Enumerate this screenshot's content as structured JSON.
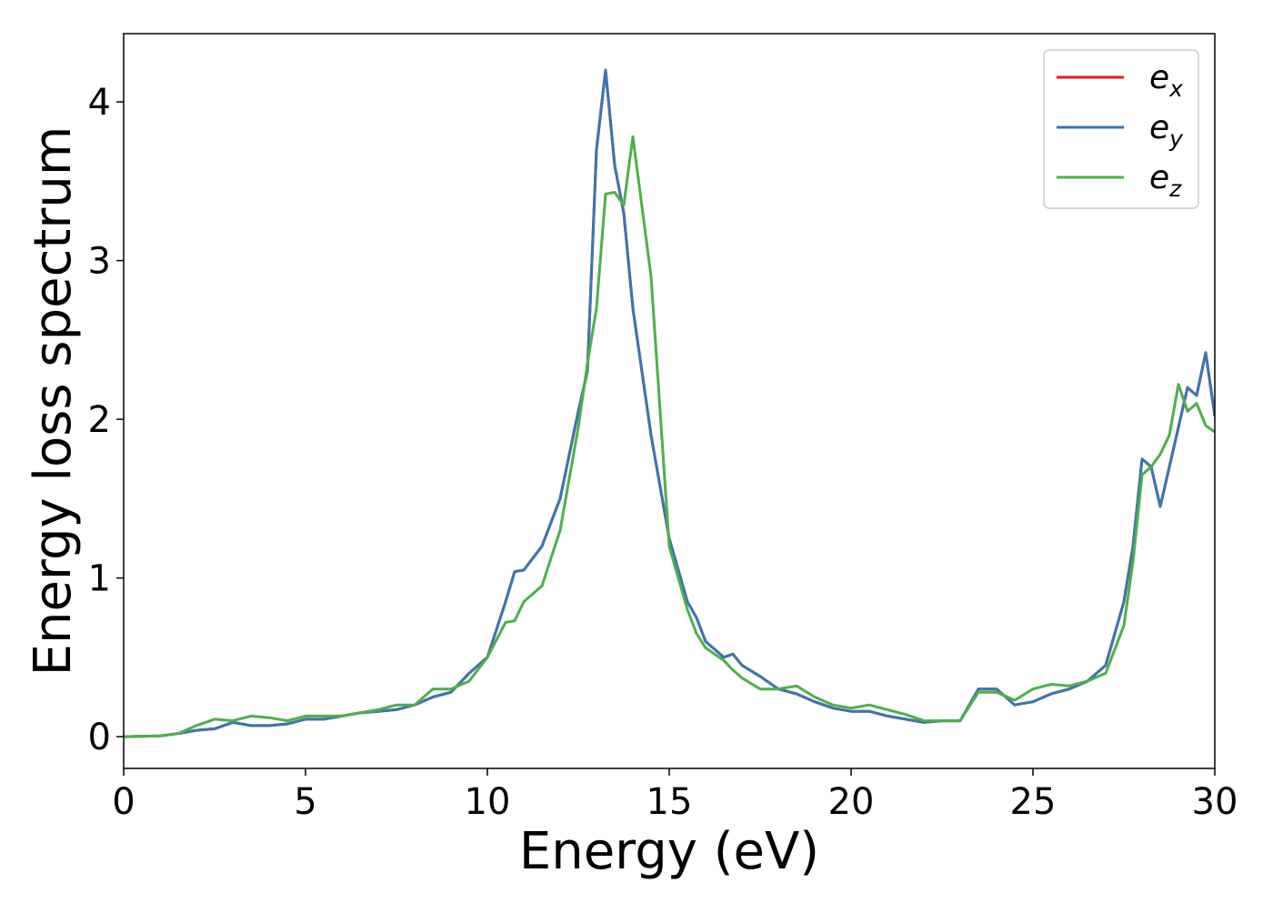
{
  "chart_data": {
    "type": "line",
    "xlabel": "Energy (eV)",
    "ylabel": "Energy loss spectrum",
    "x": [
      0,
      1,
      1.5,
      2,
      2.5,
      3,
      3.5,
      4,
      4.5,
      5,
      5.5,
      6,
      6.5,
      7,
      7.5,
      8,
      8.5,
      9,
      9.5,
      10,
      10.5,
      10.75,
      11,
      11.5,
      12,
      12.5,
      12.75,
      13,
      13.25,
      13.5,
      13.75,
      14,
      14.5,
      15,
      15.5,
      15.75,
      16,
      16.5,
      16.75,
      17,
      17.5,
      18,
      18.5,
      19,
      19.5,
      20,
      20.5,
      21,
      21.5,
      22,
      22.5,
      23,
      23.5,
      24,
      24.5,
      25,
      25.5,
      26,
      26.5,
      27,
      27.5,
      27.75,
      28,
      28.25,
      28.5,
      28.75,
      29,
      29.25,
      29.5,
      29.75,
      30
    ],
    "series": [
      {
        "name": "ex",
        "color": "#e41a1c",
        "values": [
          0,
          0.005,
          0.02,
          0.04,
          0.05,
          0.09,
          0.07,
          0.07,
          0.08,
          0.11,
          0.11,
          0.13,
          0.15,
          0.16,
          0.17,
          0.2,
          0.25,
          0.28,
          0.4,
          0.5,
          0.85,
          1.04,
          1.05,
          1.2,
          1.5,
          2.05,
          2.3,
          3.7,
          4.2,
          3.6,
          3.3,
          2.7,
          1.9,
          1.25,
          0.85,
          0.75,
          0.6,
          0.5,
          0.52,
          0.45,
          0.38,
          0.3,
          0.27,
          0.22,
          0.18,
          0.16,
          0.16,
          0.13,
          0.11,
          0.09,
          0.1,
          0.1,
          0.3,
          0.3,
          0.2,
          0.22,
          0.27,
          0.3,
          0.35,
          0.45,
          0.85,
          1.2,
          1.75,
          1.7,
          1.45,
          1.7,
          1.95,
          2.2,
          2.15,
          2.42,
          2.02
        ]
      },
      {
        "name": "ey",
        "color": "#3a76af",
        "values": [
          0,
          0.005,
          0.02,
          0.04,
          0.05,
          0.09,
          0.07,
          0.07,
          0.08,
          0.11,
          0.11,
          0.13,
          0.15,
          0.16,
          0.17,
          0.2,
          0.25,
          0.28,
          0.4,
          0.5,
          0.85,
          1.04,
          1.05,
          1.2,
          1.5,
          2.05,
          2.3,
          3.7,
          4.2,
          3.6,
          3.3,
          2.7,
          1.9,
          1.25,
          0.85,
          0.75,
          0.6,
          0.5,
          0.52,
          0.45,
          0.38,
          0.3,
          0.27,
          0.22,
          0.18,
          0.16,
          0.16,
          0.13,
          0.11,
          0.09,
          0.1,
          0.1,
          0.3,
          0.3,
          0.2,
          0.22,
          0.27,
          0.3,
          0.35,
          0.45,
          0.85,
          1.2,
          1.75,
          1.7,
          1.45,
          1.7,
          1.95,
          2.2,
          2.15,
          2.42,
          2.02
        ]
      },
      {
        "name": "ez",
        "color": "#4daf4a",
        "values": [
          0,
          0.005,
          0.02,
          0.07,
          0.11,
          0.1,
          0.13,
          0.12,
          0.1,
          0.13,
          0.13,
          0.13,
          0.15,
          0.17,
          0.2,
          0.2,
          0.3,
          0.3,
          0.35,
          0.5,
          0.72,
          0.73,
          0.85,
          0.95,
          1.3,
          1.95,
          2.35,
          2.7,
          3.42,
          3.43,
          3.35,
          3.78,
          2.9,
          1.2,
          0.8,
          0.65,
          0.56,
          0.48,
          0.42,
          0.37,
          0.3,
          0.3,
          0.32,
          0.25,
          0.2,
          0.18,
          0.2,
          0.17,
          0.14,
          0.1,
          0.1,
          0.1,
          0.28,
          0.28,
          0.23,
          0.3,
          0.33,
          0.32,
          0.35,
          0.4,
          0.7,
          1.1,
          1.65,
          1.7,
          1.78,
          1.9,
          2.22,
          2.05,
          2.1,
          1.96,
          1.92
        ]
      }
    ],
    "xlim": [
      0,
      30
    ],
    "xticks": [
      0,
      5,
      10,
      15,
      20,
      25,
      30
    ],
    "ylim": [
      -0.2,
      4.43
    ],
    "yticks": [
      0,
      1,
      2,
      3,
      4
    ],
    "legend": "upper right"
  }
}
